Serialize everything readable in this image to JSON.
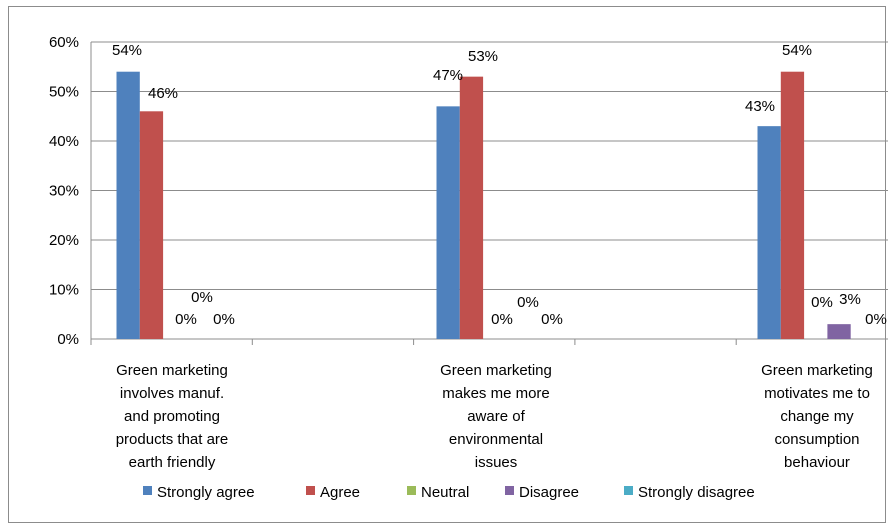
{
  "chart_data": {
    "type": "bar",
    "title": "",
    "xlabel": "",
    "ylabel": "",
    "ylim": [
      0,
      0.6
    ],
    "yticks": [
      "0%",
      "10%",
      "20%",
      "30%",
      "40%",
      "50%",
      "60%"
    ],
    "grid": true,
    "legend_position": "bottom",
    "categories": [
      [
        "Green marketing",
        "involves manuf.",
        "and promoting",
        "products that are",
        "earth friendly"
      ],
      [
        "Green marketing",
        "makes me more",
        "aware of",
        "environmental",
        "issues"
      ],
      [
        "Green marketing",
        "motivates me to",
        "change my",
        "consumption",
        "behaviour"
      ]
    ],
    "series": [
      {
        "name": "Strongly agree",
        "color": "#4f81bd",
        "values": [
          0.54,
          0.47,
          0.43
        ],
        "labels": [
          "54%",
          "47%",
          "43%"
        ]
      },
      {
        "name": "Agree",
        "color": "#c0504d",
        "values": [
          0.46,
          0.53,
          0.54
        ],
        "labels": [
          "46%",
          "53%",
          "54%"
        ]
      },
      {
        "name": "Neutral",
        "color": "#9bbb59",
        "values": [
          0,
          0,
          0
        ],
        "labels": [
          "0%",
          "0%",
          "0%"
        ]
      },
      {
        "name": "Disagree",
        "color": "#8064a2",
        "values": [
          0,
          0,
          0.03
        ],
        "labels": [
          "0%",
          "0%",
          "3%"
        ]
      },
      {
        "name": "Strongly disagree",
        "color": "#4bacc6",
        "values": [
          0,
          0,
          0
        ],
        "labels": [
          "0%",
          "0%",
          "0%"
        ]
      }
    ]
  }
}
